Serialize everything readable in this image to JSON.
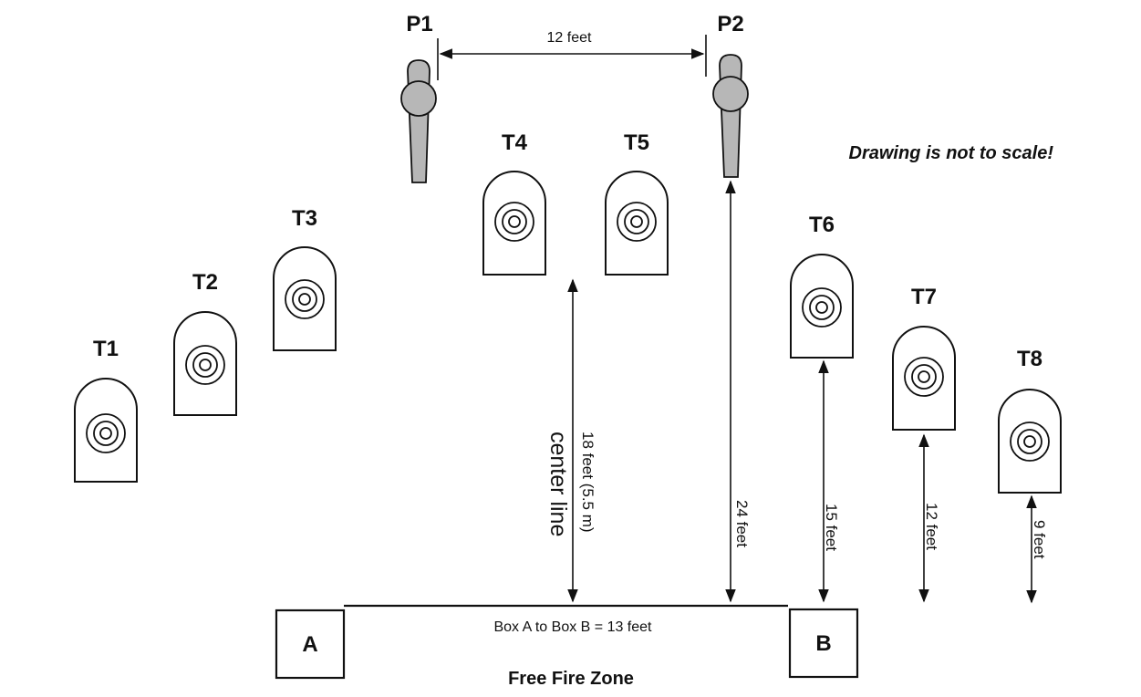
{
  "posts": [
    {
      "id": "post-p1",
      "label": "P1"
    },
    {
      "id": "post-p2",
      "label": "P2"
    }
  ],
  "targets": [
    {
      "id": "target-t1",
      "label": "T1"
    },
    {
      "id": "target-t2",
      "label": "T2"
    },
    {
      "id": "target-t3",
      "label": "T3"
    },
    {
      "id": "target-t4",
      "label": "T4"
    },
    {
      "id": "target-t5",
      "label": "T5"
    },
    {
      "id": "target-t6",
      "label": "T6"
    },
    {
      "id": "target-t7",
      "label": "T7"
    },
    {
      "id": "target-t8",
      "label": "T8"
    }
  ],
  "dimensions": {
    "post_spacing": "12 feet",
    "center_to_t4_t5": "18 feet (5.5 m)",
    "box_to_p2": "24 feet",
    "box_to_t6": "15 feet",
    "box_to_t7": "12 feet",
    "box_to_t8": "9 feet",
    "box_a_to_box_b": "Box A to Box B = 13 feet"
  },
  "center_line_label": "center line",
  "boxes": {
    "a": "A",
    "b": "B"
  },
  "zone_label": "Free Fire Zone",
  "note": "Drawing is not to scale!"
}
